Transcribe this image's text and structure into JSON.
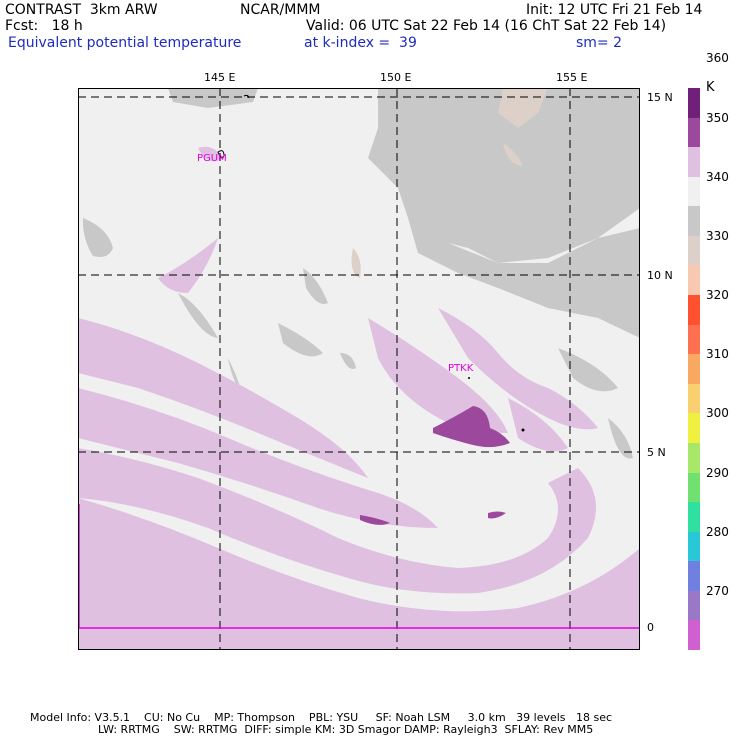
{
  "header": {
    "model": "CONTRAST  3km ARW",
    "center": "NCAR/MMM",
    "init": "Init: 12 UTC Fri 21 Feb 14",
    "fcst": "Fcst:   18 h",
    "valid": "Valid: 06 UTC Sat 22 Feb 14 (16 ChT Sat 22 Feb 14)",
    "field": "Equivalent potential temperature",
    "level": "at k-index =  39",
    "smooth": "sm= 2"
  },
  "map": {
    "lon_labels": [
      "145 E",
      "150 E",
      "155 E"
    ],
    "lat_labels": [
      "15 N",
      "10 N",
      "5 N",
      "0"
    ],
    "stations": [
      "PGUM",
      "PTKK"
    ]
  },
  "colorbar": {
    "unit": "K",
    "labels": [
      "270",
      "280",
      "290",
      "300",
      "310",
      "320",
      "330",
      "340",
      "350",
      "360"
    ],
    "colors": [
      "#d060d0",
      "#9a78c8",
      "#7080e0",
      "#28c8d8",
      "#30e0a0",
      "#70e070",
      "#a8e868",
      "#f0f040",
      "#f8d070",
      "#f8a860",
      "#ff7050",
      "#ff5030",
      "#f8c8b0",
      "#dcd0c8",
      "#c8c8c8",
      "#f0f0f0",
      "#e0c0e0",
      "#9c489c",
      "#70207a"
    ]
  },
  "footer": {
    "line1": "Model Info: V3.5.1    CU: No Cu    MP: Thompson    PBL: YSU     SF: Noah LSM     3.0 km   39 levels   18 sec",
    "line2": "LW: RRTMG    SW: RRTMG  DIFF: simple KM: 3D Smagor DAMP: Rayleigh3  SFLAY: Rev MM5"
  }
}
